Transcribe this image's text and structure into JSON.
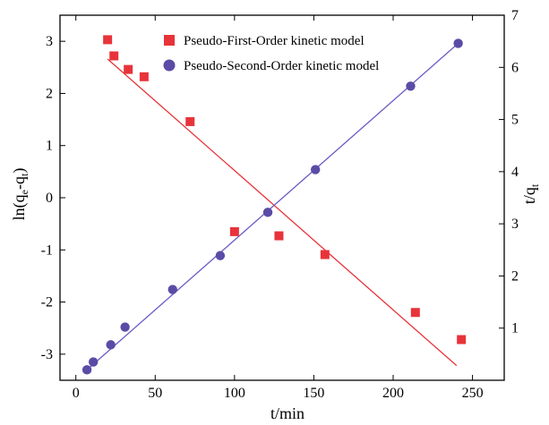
{
  "chart_data": {
    "type": "scatter",
    "title": "",
    "xlabel": "t/min",
    "ylabel_left": {
      "main": "ln(q",
      "sub1": "e",
      "mid": "-q",
      "sub2": "t",
      "end": ")"
    },
    "ylabel_right": {
      "main": "t/q",
      "sub": "t"
    },
    "xlim": [
      -10,
      270
    ],
    "ylim_left": [
      -3.5,
      3.5
    ],
    "ylim_right": [
      0,
      7
    ],
    "x_ticks": [
      0,
      50,
      100,
      150,
      200,
      250
    ],
    "y_left_ticks": [
      -3,
      -2,
      -1,
      0,
      1,
      2,
      3
    ],
    "y_right_ticks": [
      1,
      2,
      3,
      4,
      5,
      6,
      7
    ],
    "grid": false,
    "legend_position": "top-center",
    "series": [
      {
        "name": "Pseudo-First-Order kinetic model",
        "axis": "left",
        "marker": "square",
        "color": "#e8333a",
        "x": [
          20,
          24,
          33,
          43,
          72,
          100,
          128,
          157,
          214,
          243
        ],
        "y": [
          3.03,
          2.72,
          2.46,
          2.32,
          1.46,
          -0.65,
          -0.73,
          -1.09,
          -2.2,
          -2.72
        ],
        "fit_line": {
          "x": [
            20,
            240
          ],
          "y": [
            2.66,
            -3.22
          ]
        }
      },
      {
        "name": "Pseudo-Second-Order kinetic model",
        "axis": "right",
        "marker": "circle",
        "color": "#5b4ba6",
        "line_color": "#6a5cc4",
        "x": [
          7,
          11,
          22,
          31,
          61,
          91,
          121,
          151,
          211,
          241
        ],
        "y": [
          0.2,
          0.35,
          0.68,
          1.02,
          1.74,
          2.39,
          3.22,
          4.04,
          5.64,
          6.46
        ],
        "fit_line": {
          "x": [
            7,
            241
          ],
          "y": [
            0.2,
            6.46
          ]
        }
      }
    ]
  }
}
